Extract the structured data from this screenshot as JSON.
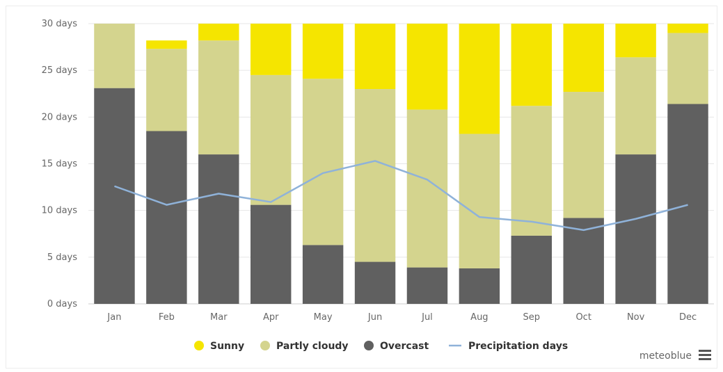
{
  "chart_data": {
    "type": "bar",
    "stacked": true,
    "categories": [
      "Jan",
      "Feb",
      "Mar",
      "Apr",
      "May",
      "Jun",
      "Jul",
      "Aug",
      "Sep",
      "Oct",
      "Nov",
      "Dec"
    ],
    "ylim": [
      0,
      30
    ],
    "yticks": [
      0,
      5,
      10,
      15,
      20,
      25,
      30
    ],
    "ytick_labels": [
      "0 days",
      "5 days",
      "10 days",
      "15 days",
      "20 days",
      "25 days",
      "30 days"
    ],
    "grid": true,
    "legend_position": "bottom",
    "series": [
      {
        "name": "Overcast",
        "type": "bar",
        "color": "#606060",
        "values": [
          23.1,
          18.5,
          16.0,
          10.6,
          6.3,
          4.5,
          3.9,
          3.8,
          7.3,
          9.2,
          16.0,
          21.4
        ]
      },
      {
        "name": "Partly cloudy",
        "type": "bar",
        "color": "#d4d48e",
        "values": [
          6.9,
          8.8,
          12.2,
          13.9,
          17.8,
          18.5,
          16.9,
          14.4,
          13.9,
          13.5,
          10.4,
          7.6
        ]
      },
      {
        "name": "Sunny",
        "type": "bar",
        "color": "#f5e500",
        "values": [
          0.0,
          0.9,
          1.8,
          5.5,
          5.9,
          7.0,
          9.2,
          11.8,
          8.8,
          7.3,
          3.6,
          1.0
        ]
      },
      {
        "name": "Precipitation days",
        "type": "line",
        "color": "#8fb2d9",
        "values": [
          12.6,
          10.6,
          11.8,
          10.9,
          14.0,
          15.3,
          13.3,
          9.3,
          8.8,
          7.9,
          9.1,
          10.6
        ]
      }
    ],
    "legend_order": [
      "Sunny",
      "Partly cloudy",
      "Overcast",
      "Precipitation days"
    ]
  },
  "credit": {
    "text": "meteoblue",
    "menu_icon": "hamburger-menu-icon"
  }
}
